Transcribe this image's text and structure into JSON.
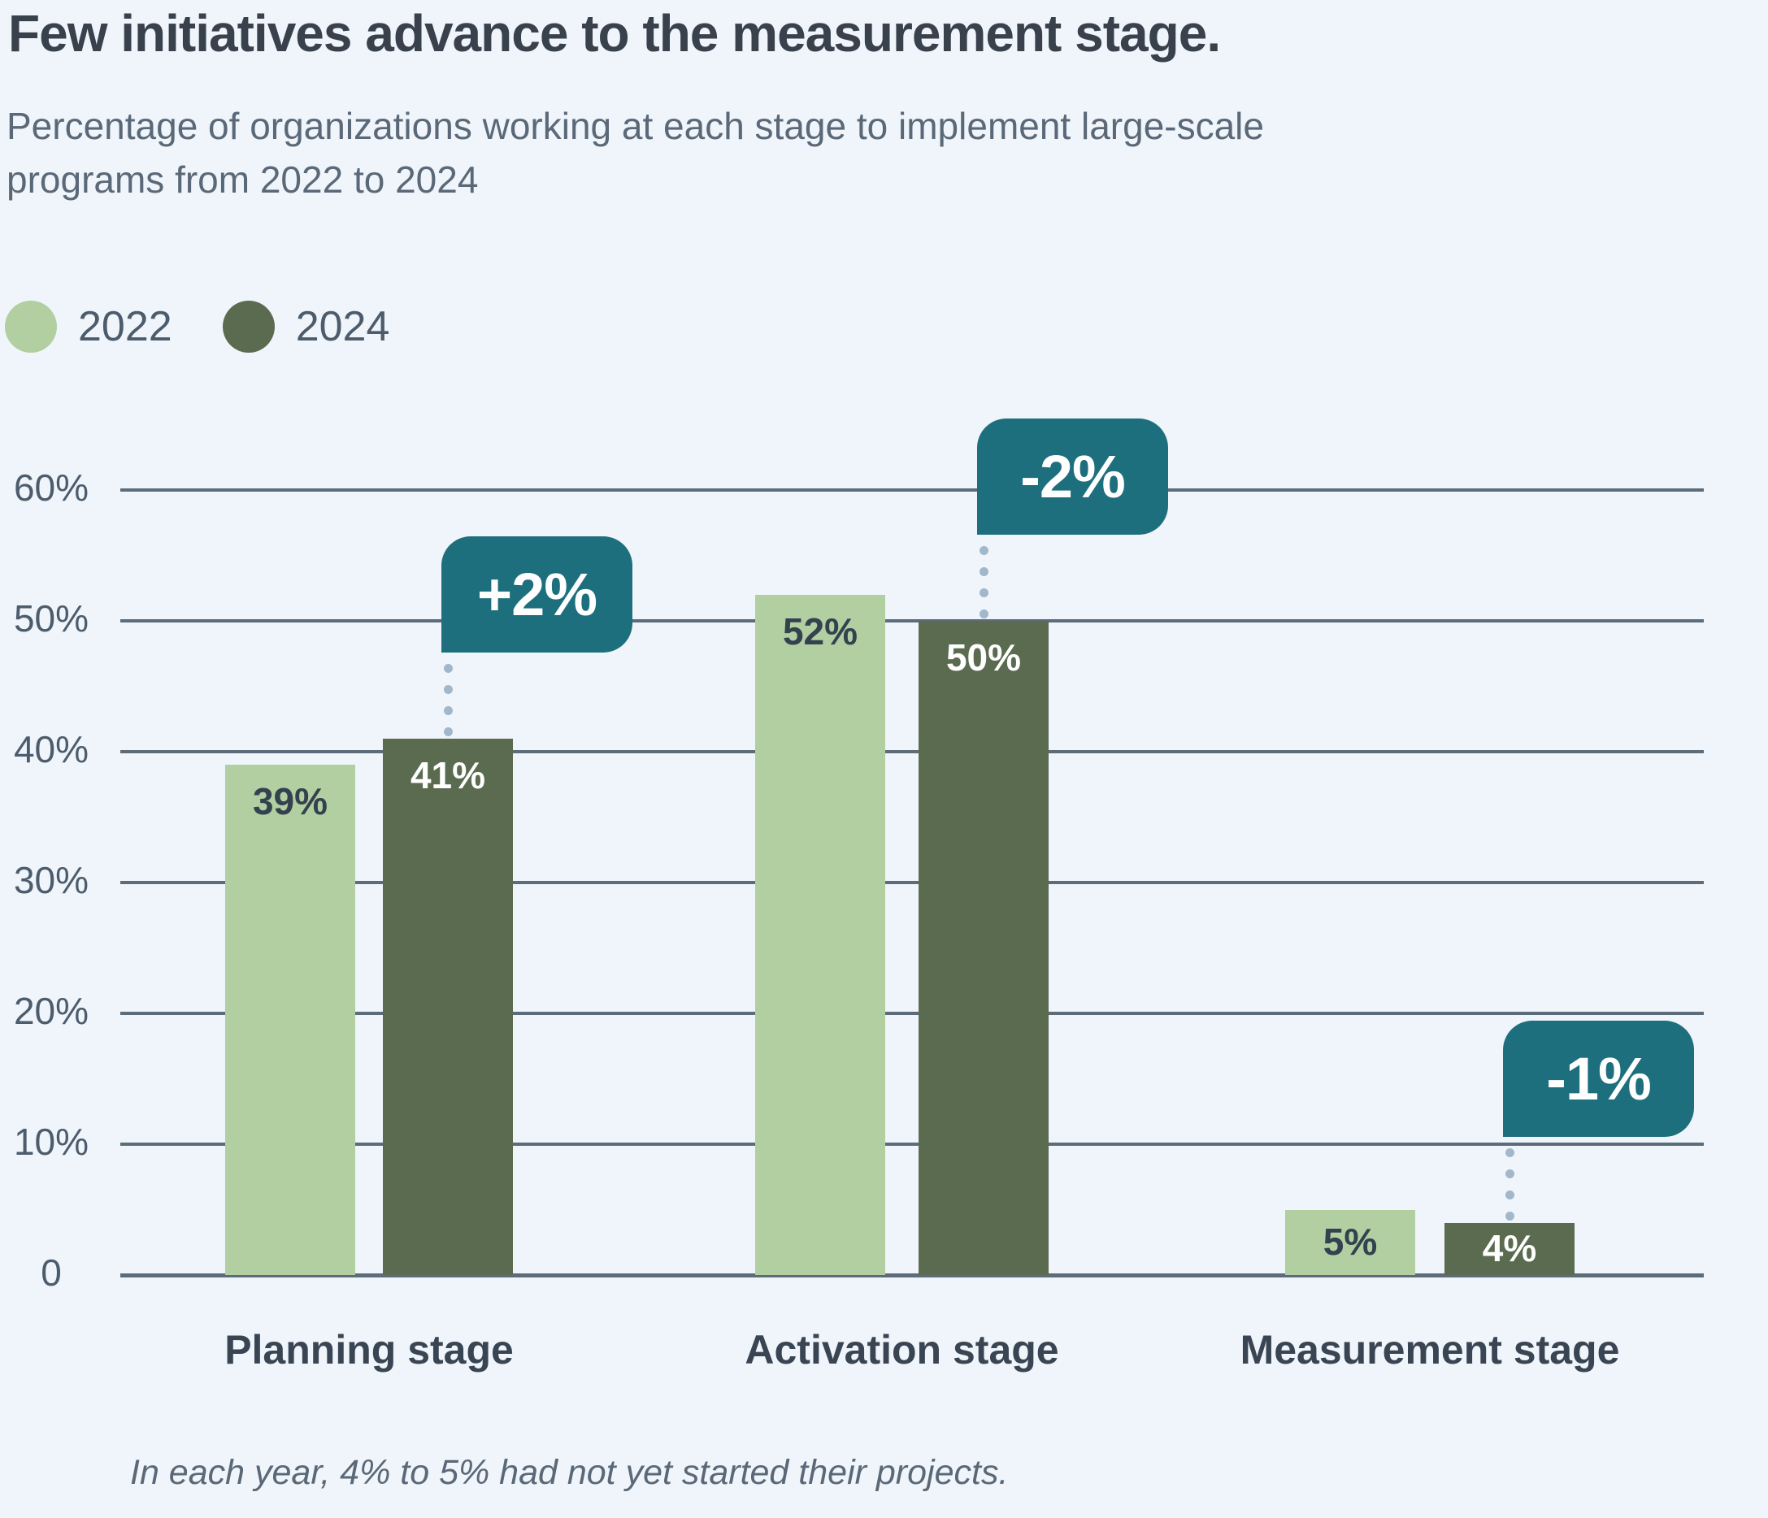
{
  "header": {
    "title": "Few initiatives advance to the measurement stage.",
    "subtitle_lines": [
      "Percentage of organizations working at each stage to implement large-scale",
      "programs from 2022 to 2024"
    ]
  },
  "legend": {
    "items": [
      {
        "label": "2022",
        "color": "#b1cfa1"
      },
      {
        "label": "2024",
        "color": "#5b6b50"
      }
    ]
  },
  "chart_data": {
    "type": "bar",
    "title": "Few initiatives advance to the measurement stage.",
    "categories": [
      "Planning stage",
      "Activation stage",
      "Measurement stage"
    ],
    "series": [
      {
        "name": "2022",
        "color": "#b1cfa1",
        "values": [
          39,
          52,
          5
        ],
        "labels": [
          "39%",
          "52%",
          "5%"
        ],
        "label_color": "#34414f"
      },
      {
        "name": "2024",
        "color": "#5b6b50",
        "values": [
          41,
          50,
          4
        ],
        "labels": [
          "41%",
          "50%",
          "4%"
        ],
        "label_color": "#ffffff"
      }
    ],
    "callouts": [
      {
        "label": "+2%",
        "category_index": 0
      },
      {
        "label": "-2%",
        "category_index": 1
      },
      {
        "label": "-1%",
        "category_index": 2
      }
    ],
    "yticks": [
      {
        "value": 0,
        "label": "0"
      },
      {
        "value": 10,
        "label": "10%"
      },
      {
        "value": 20,
        "label": "20%"
      },
      {
        "value": 30,
        "label": "30%"
      },
      {
        "value": 40,
        "label": "40%"
      },
      {
        "value": 50,
        "label": "50%"
      },
      {
        "value": 60,
        "label": "60%"
      }
    ],
    "ylim": [
      0,
      62
    ],
    "grid": true,
    "legend_position": "top-left"
  },
  "footnote": "In each year, 4% to 5% had not yet started their projects.",
  "colors": {
    "background": "#eff5fa",
    "gridline": "#5d6c7b",
    "title": "#39414d",
    "subtitle": "#5a6878",
    "axis_label": "#4d5c6c",
    "category_label": "#3a4554",
    "callout_background": "#1e6f7d",
    "callout_text": "#ffffff",
    "connector_dot": "#a2b7ca"
  }
}
